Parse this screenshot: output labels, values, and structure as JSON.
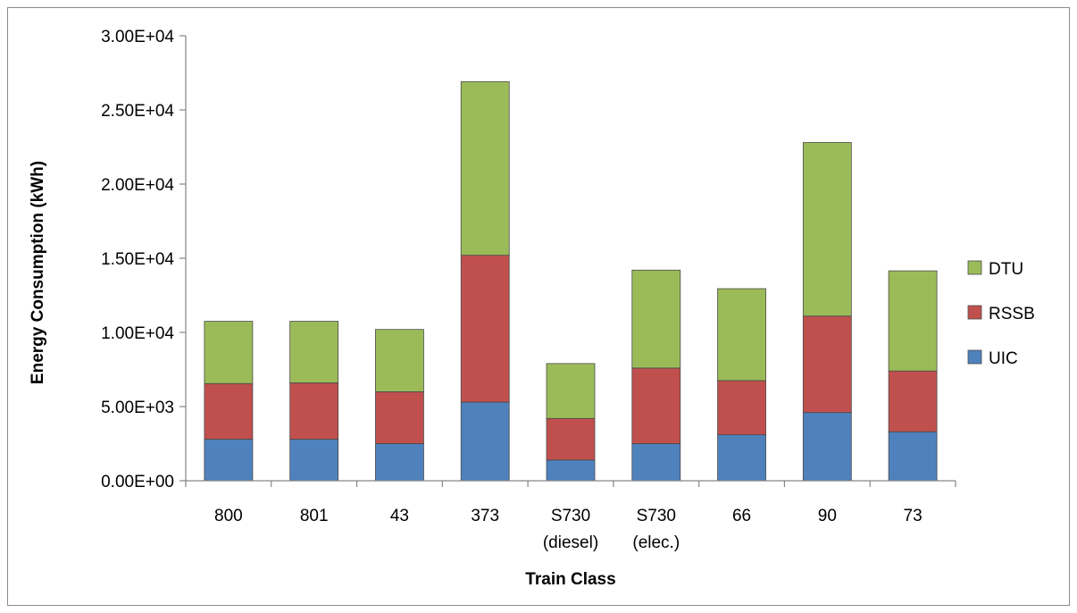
{
  "chart_data": {
    "type": "bar",
    "stacked": true,
    "categories": [
      [
        "800"
      ],
      [
        "801"
      ],
      [
        "43"
      ],
      [
        "373"
      ],
      [
        "S730",
        "(diesel)"
      ],
      [
        "S730",
        "(elec.)"
      ],
      [
        "66"
      ],
      [
        "90"
      ],
      [
        "73"
      ]
    ],
    "series": [
      {
        "name": "UIC",
        "color": "#4f81bd",
        "values": [
          2800,
          2800,
          2500,
          5300,
          1400,
          2500,
          3100,
          4600,
          3300
        ]
      },
      {
        "name": "RSSB",
        "color": "#c0504d",
        "values": [
          3750,
          3800,
          3500,
          9900,
          2800,
          5100,
          3650,
          6500,
          4100
        ]
      },
      {
        "name": "DTU",
        "color": "#9bbb59",
        "values": [
          4200,
          4150,
          4200,
          11700,
          3700,
          6600,
          6200,
          11700,
          6750
        ]
      }
    ],
    "xlabel": "Train Class",
    "ylabel": "Energy Consumption (kWh)",
    "ylim": [
      0,
      30000
    ],
    "yticks": [
      0,
      5000,
      10000,
      15000,
      20000,
      25000,
      30000
    ],
    "ytick_labels": [
      "0.00E+00",
      "5.00E+03",
      "1.00E+04",
      "1.50E+04",
      "2.00E+04",
      "2.50E+04",
      "3.00E+04"
    ],
    "legend_position": "right",
    "legend_order": [
      "DTU",
      "RSSB",
      "UIC"
    ],
    "grid": false
  }
}
